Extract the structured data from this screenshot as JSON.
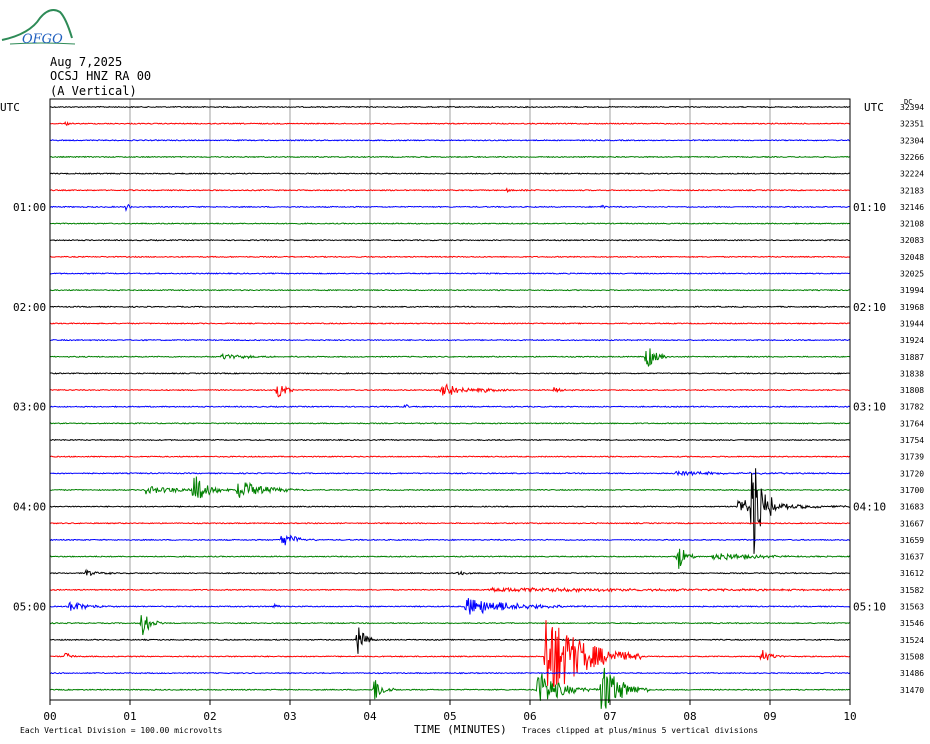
{
  "header": {
    "logo_text": "OFGO",
    "date": "Aug 7,2025",
    "station": "OCSJ HNZ RA 00",
    "component": "(A Vertical)"
  },
  "axes": {
    "left_label": "UTC",
    "right_label": "UTC",
    "right_top_label": "DC",
    "xlabel": "TIME (MINUTES)",
    "footer_left": "Each Vertical Division =  100.00 microvolts",
    "footer_right": "Traces clipped at plus/minus 5 vertical divisions"
  },
  "colors": {
    "cycle": [
      "#000000",
      "#ff0000",
      "#0000ff",
      "#008000"
    ],
    "grid": "#888888"
  },
  "chart_data": {
    "type": "line",
    "title": "",
    "xlim": [
      0,
      10
    ],
    "x_ticks": [
      "00",
      "01",
      "02",
      "03",
      "04",
      "05",
      "06",
      "07",
      "08",
      "09",
      "10"
    ],
    "rows_per_hour": 6,
    "left_time_labels": [
      {
        "row": 6,
        "text": "01:00"
      },
      {
        "row": 12,
        "text": "02:00"
      },
      {
        "row": 18,
        "text": "03:00"
      },
      {
        "row": 24,
        "text": "04:00"
      },
      {
        "row": 30,
        "text": "05:00"
      }
    ],
    "right_time_labels": [
      {
        "row": 6,
        "text": "01:10"
      },
      {
        "row": 12,
        "text": "02:10"
      },
      {
        "row": 18,
        "text": "03:10"
      },
      {
        "row": 24,
        "text": "04:10"
      },
      {
        "row": 30,
        "text": "05:10"
      }
    ],
    "dc_values": [
      32394,
      32351,
      32304,
      32266,
      32224,
      32183,
      32146,
      32108,
      32083,
      32048,
      32025,
      31994,
      31968,
      31944,
      31924,
      31887,
      31838,
      31808,
      31782,
      31764,
      31754,
      31739,
      31720,
      31700,
      31683,
      31667,
      31659,
      31637,
      31612,
      31582,
      31563,
      31546,
      31524,
      31508,
      31486,
      31470
    ],
    "events": [
      {
        "row": 1,
        "t": 0.2,
        "amp": 2,
        "dur": 0.05
      },
      {
        "row": 5,
        "t": 5.7,
        "amp": 1.5,
        "dur": 0.2
      },
      {
        "row": 6,
        "t": 0.95,
        "amp": 4,
        "dur": 0.05
      },
      {
        "row": 6,
        "t": 6.9,
        "amp": 2,
        "dur": 0.05
      },
      {
        "row": 15,
        "t": 2.15,
        "amp": 3,
        "dur": 0.3
      },
      {
        "row": 15,
        "t": 7.45,
        "amp": 14,
        "dur": 0.1
      },
      {
        "row": 17,
        "t": 2.85,
        "amp": 11,
        "dur": 0.08
      },
      {
        "row": 17,
        "t": 4.9,
        "amp": 10,
        "dur": 0.18
      },
      {
        "row": 17,
        "t": 5.35,
        "amp": 3,
        "dur": 0.2
      },
      {
        "row": 17,
        "t": 6.3,
        "amp": 4,
        "dur": 0.1
      },
      {
        "row": 18,
        "t": 4.45,
        "amp": 3,
        "dur": 0.03
      },
      {
        "row": 22,
        "t": 7.8,
        "amp": 2,
        "dur": 0.8
      },
      {
        "row": 23,
        "t": 1.2,
        "amp": 4,
        "dur": 0.5
      },
      {
        "row": 23,
        "t": 1.8,
        "amp": 16,
        "dur": 0.15
      },
      {
        "row": 23,
        "t": 2.35,
        "amp": 10,
        "dur": 0.3
      },
      {
        "row": 24,
        "t": 8.6,
        "amp": 8,
        "dur": 0.5
      },
      {
        "row": 24,
        "t": 8.78,
        "amp": 50,
        "dur": 0.12
      },
      {
        "row": 26,
        "t": 2.9,
        "amp": 9,
        "dur": 0.15
      },
      {
        "row": 27,
        "t": 7.85,
        "amp": 16,
        "dur": 0.08
      },
      {
        "row": 27,
        "t": 8.3,
        "amp": 4,
        "dur": 0.5
      },
      {
        "row": 28,
        "t": 0.45,
        "amp": 3,
        "dur": 0.15
      },
      {
        "row": 28,
        "t": 5.1,
        "amp": 3,
        "dur": 0.1
      },
      {
        "row": 29,
        "t": 5.5,
        "amp": 2,
        "dur": 3
      },
      {
        "row": 30,
        "t": 0.25,
        "amp": 6,
        "dur": 0.2
      },
      {
        "row": 30,
        "t": 2.8,
        "amp": 3,
        "dur": 0.05
      },
      {
        "row": 30,
        "t": 5.2,
        "amp": 10,
        "dur": 0.5
      },
      {
        "row": 31,
        "t": 1.15,
        "amp": 14,
        "dur": 0.1
      },
      {
        "row": 32,
        "t": 3.85,
        "amp": 15,
        "dur": 0.08
      },
      {
        "row": 33,
        "t": 0.2,
        "amp": 5,
        "dur": 0.05
      },
      {
        "row": 33,
        "t": 6.2,
        "amp": 50,
        "dur": 0.4
      },
      {
        "row": 33,
        "t": 8.9,
        "amp": 8,
        "dur": 0.1
      },
      {
        "row": 35,
        "t": 4.05,
        "amp": 14,
        "dur": 0.1
      },
      {
        "row": 35,
        "t": 6.1,
        "amp": 20,
        "dur": 0.25
      },
      {
        "row": 35,
        "t": 6.9,
        "amp": 30,
        "dur": 0.2
      }
    ]
  }
}
